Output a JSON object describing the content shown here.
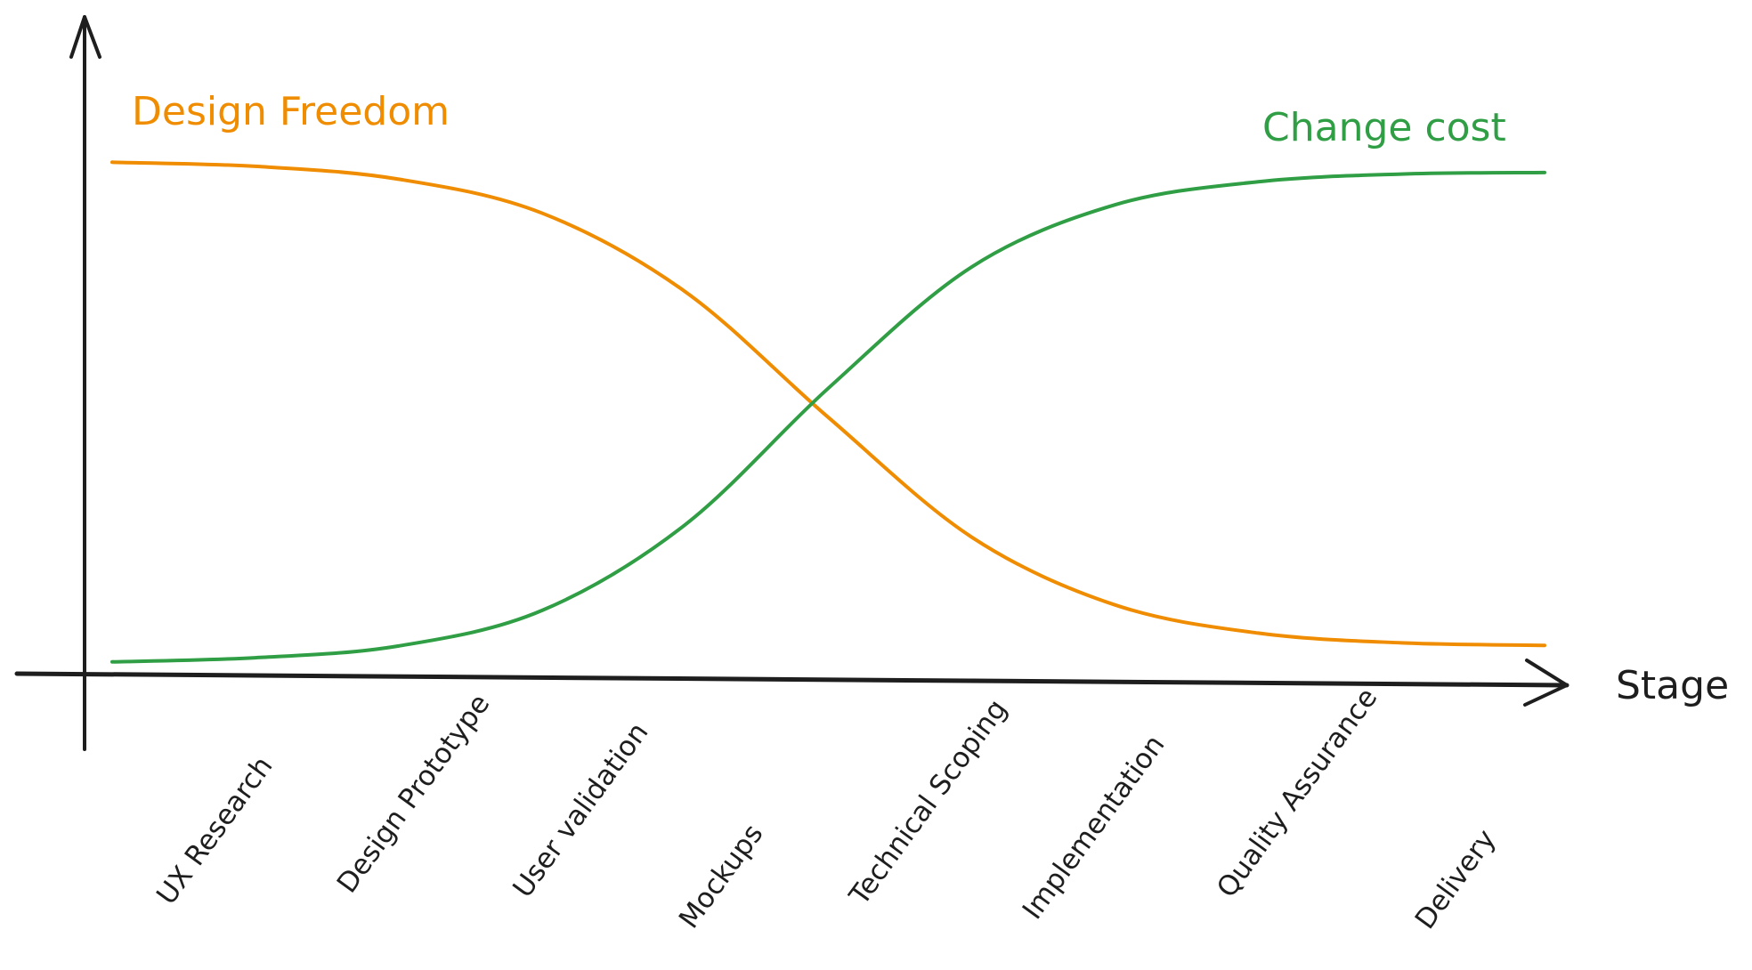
{
  "chart_data": {
    "type": "line",
    "title": "",
    "xlabel": "Stage",
    "ylabel": "",
    "categories": [
      "UX Research",
      "Design Prototype",
      "User validation",
      "Mockups",
      "Technical Scoping",
      "Implementation",
      "Quality Assurance",
      "Delivery"
    ],
    "xlim": [
      0,
      100
    ],
    "ylim": [
      0,
      100
    ],
    "grid": false,
    "x": [
      0,
      10,
      20,
      30,
      40,
      50,
      60,
      70,
      80,
      90,
      100
    ],
    "series": [
      {
        "name": "Design Freedom",
        "color": "#f08c00",
        "values": [
          99.6,
          98.8,
          96.3,
          89.7,
          74.4,
          49.9,
          26.6,
          13.4,
          7.9,
          6.0,
          5.5
        ]
      },
      {
        "name": "Change cost",
        "color": "#2f9e44",
        "values": [
          2.3,
          3.1,
          5.4,
          12.3,
          29.0,
          55.6,
          79.2,
          91.3,
          95.8,
          97.3,
          97.6
        ]
      }
    ]
  }
}
